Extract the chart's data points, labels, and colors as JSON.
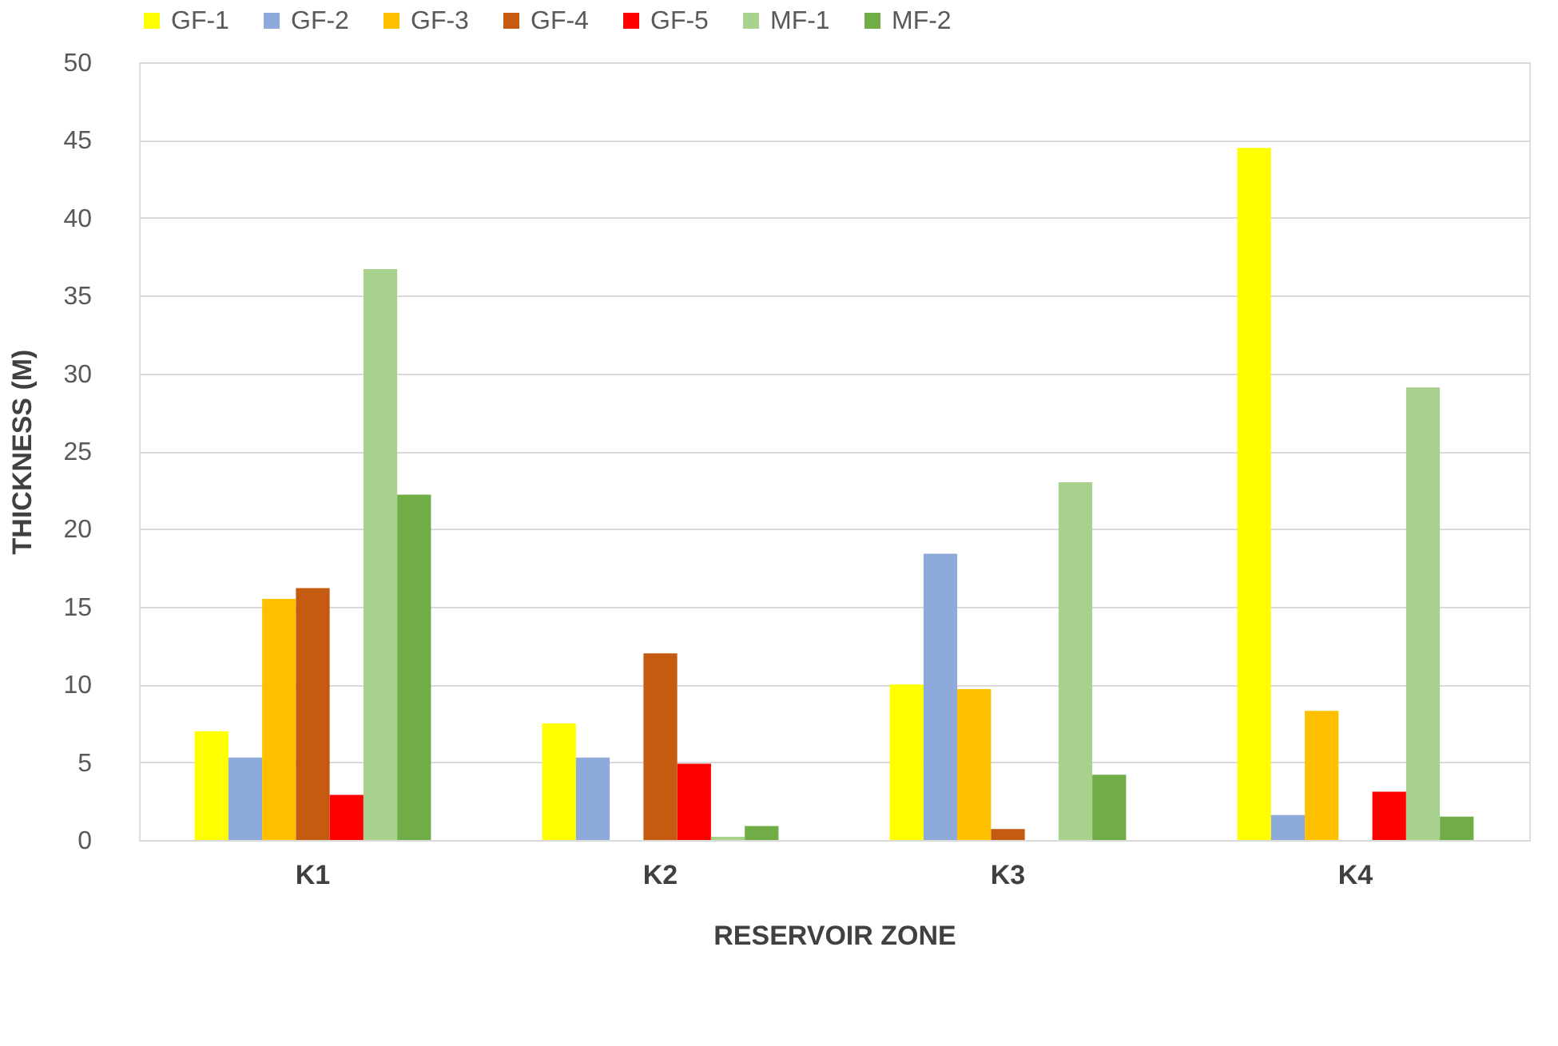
{
  "chart_data": {
    "type": "bar",
    "xlabel": "RESERVOIR ZONE",
    "ylabel": "THICKNESS (M)",
    "categories": [
      "K1",
      "K2",
      "K3",
      "K4"
    ],
    "series": [
      {
        "name": "GF-1",
        "color": "#ffff00",
        "values": [
          7.0,
          7.5,
          10.0,
          44.5
        ]
      },
      {
        "name": "GF-2",
        "color": "#8eaadb",
        "values": [
          5.3,
          5.3,
          18.4,
          1.6
        ]
      },
      {
        "name": "GF-3",
        "color": "#ffc000",
        "values": [
          15.5,
          0,
          9.7,
          8.3
        ]
      },
      {
        "name": "GF-4",
        "color": "#c55a11",
        "values": [
          16.2,
          12.0,
          0.7,
          0
        ]
      },
      {
        "name": "GF-5",
        "color": "#ff0000",
        "values": [
          2.9,
          4.9,
          0,
          3.1
        ]
      },
      {
        "name": "MF-1",
        "color": "#a9d18e",
        "values": [
          36.7,
          0.2,
          23.0,
          29.1
        ]
      },
      {
        "name": "MF-2",
        "color": "#70ad47",
        "values": [
          22.2,
          0.9,
          4.2,
          1.5
        ]
      }
    ],
    "ylim": [
      0,
      50
    ],
    "yticks": [
      0,
      5,
      10,
      15,
      20,
      25,
      30,
      35,
      40,
      45,
      50
    ],
    "grid": "y",
    "legend": "top"
  }
}
